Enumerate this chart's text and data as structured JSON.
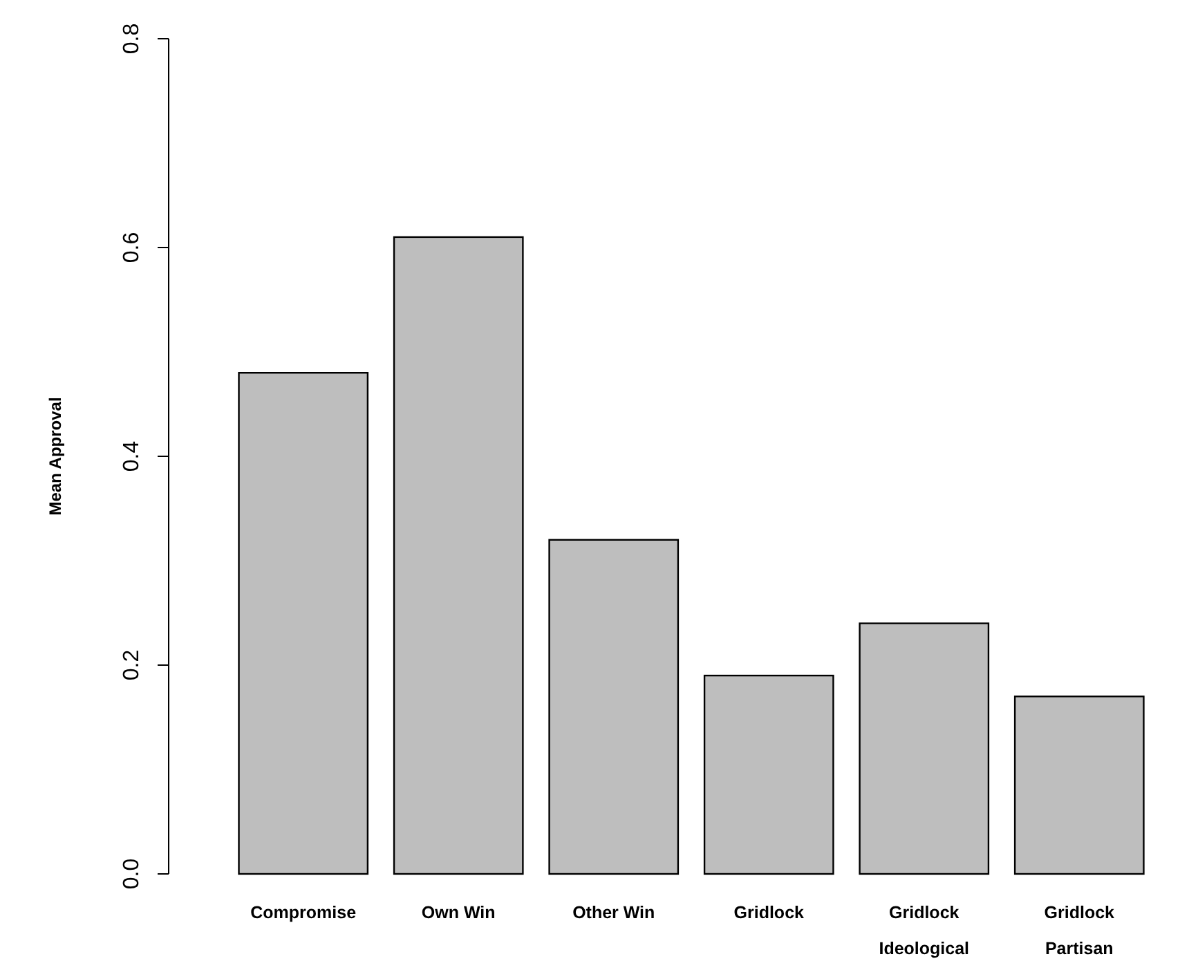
{
  "chart_data": {
    "type": "bar",
    "ylabel": "Mean Approval",
    "categories": [
      "Compromise",
      "Own Win",
      "Other Win",
      "Gridlock",
      "Gridlock\nIdeological",
      "Gridlock\nPartisan"
    ],
    "values": [
      0.48,
      0.61,
      0.32,
      0.19,
      0.24,
      0.17
    ],
    "color": "#bebebe",
    "ylim": [
      0,
      0.8
    ],
    "yticks": [
      {
        "value": 0,
        "label": "0.0"
      },
      {
        "value": 0.2,
        "label": "0.2"
      },
      {
        "value": 0.4,
        "label": "0.4"
      },
      {
        "value": 0.6,
        "label": "0.6"
      },
      {
        "value": 0.8,
        "label": "0.8"
      }
    ],
    "grid": false
  }
}
